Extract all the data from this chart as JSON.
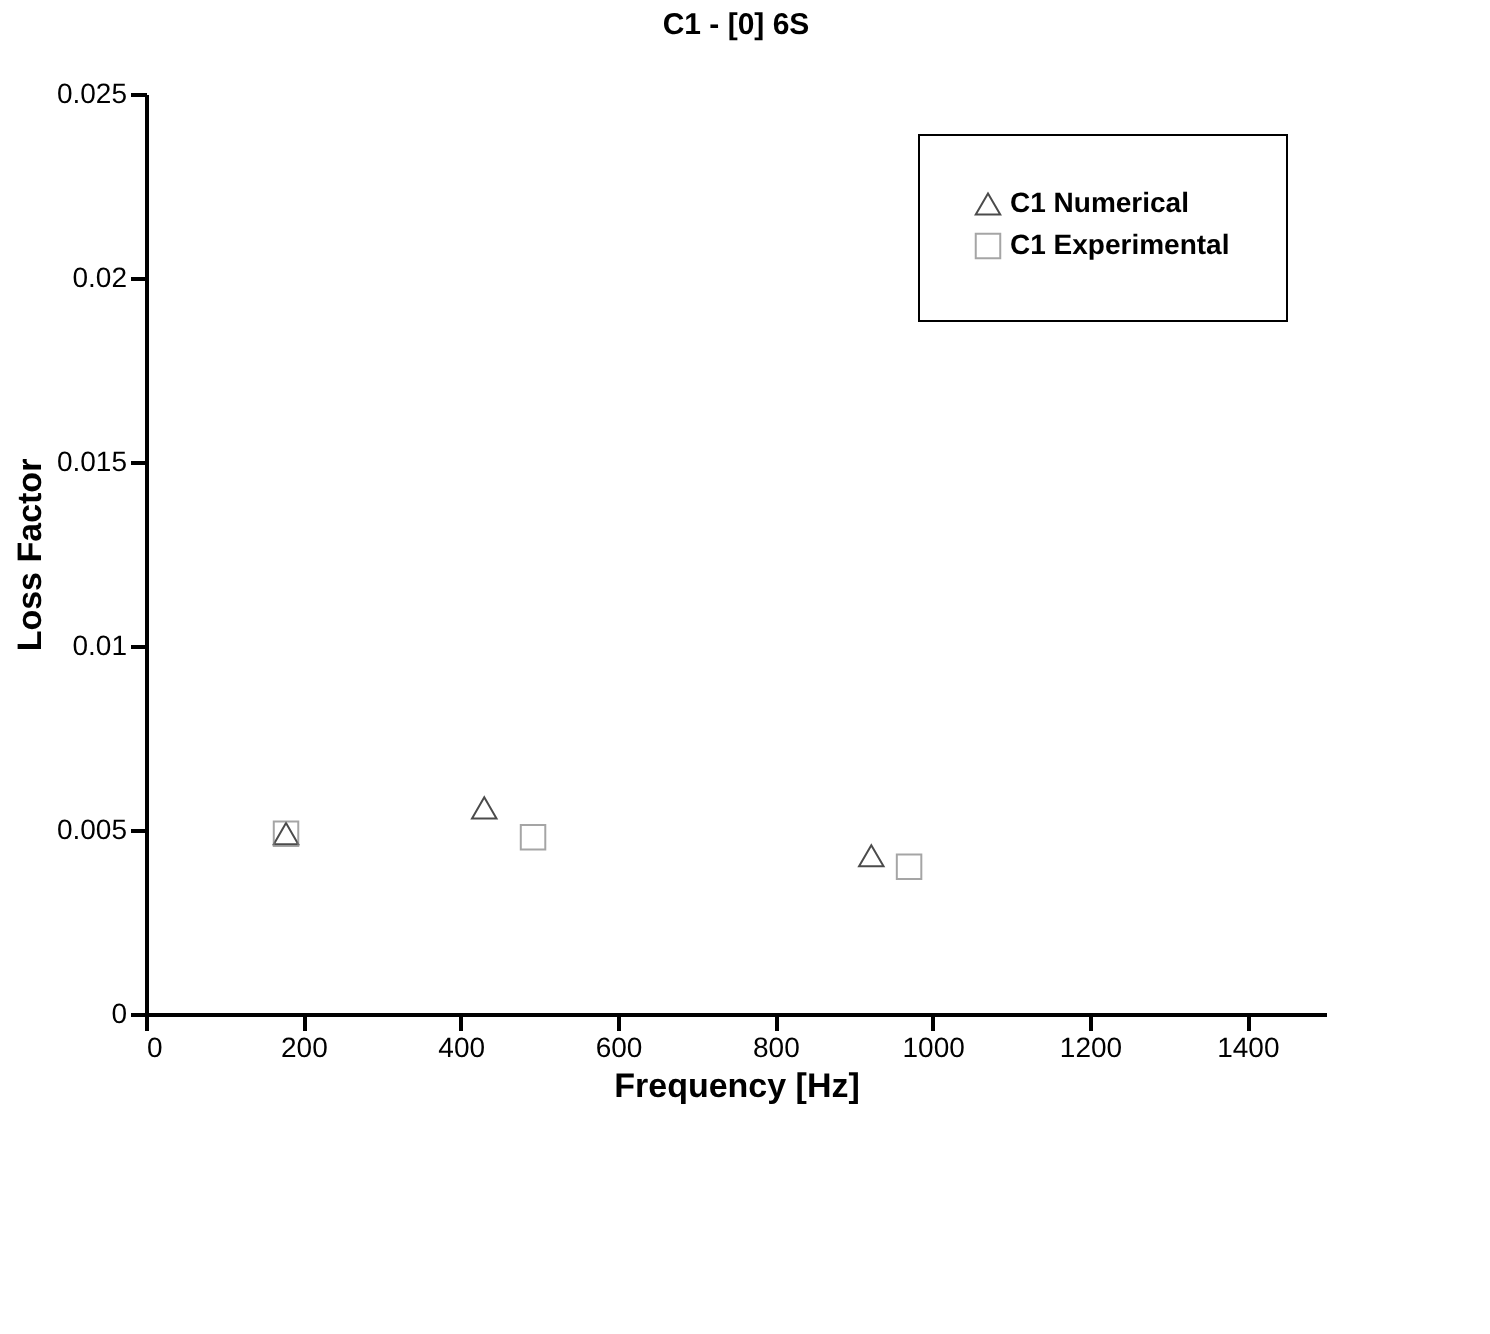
{
  "chart_data": {
    "type": "scatter",
    "title": "C1 - [0] 6S",
    "xlabel": "Frequency [Hz]",
    "ylabel": "Loss Factor",
    "xlim": [
      0,
      1500
    ],
    "xticks": [
      0,
      200,
      400,
      600,
      800,
      1000,
      1200,
      1400
    ],
    "ylim": [
      0,
      0.025
    ],
    "yticks": [
      0,
      0.005,
      0.01,
      0.015,
      0.02,
      0.025
    ],
    "grid": false,
    "legend": "top right",
    "series": [
      {
        "name": "C1 Numerical",
        "color": "#000000",
        "marker": "triangle",
        "x": [
          178,
          430,
          922
        ],
        "values": [
          0.0049,
          0.0056,
          0.0043
        ]
      },
      {
        "name": "C1 Experimental",
        "color": "#808080",
        "marker": "square",
        "x": [
          178,
          492,
          970
        ],
        "values": [
          0.0049,
          0.0048,
          0.004
        ]
      }
    ]
  }
}
